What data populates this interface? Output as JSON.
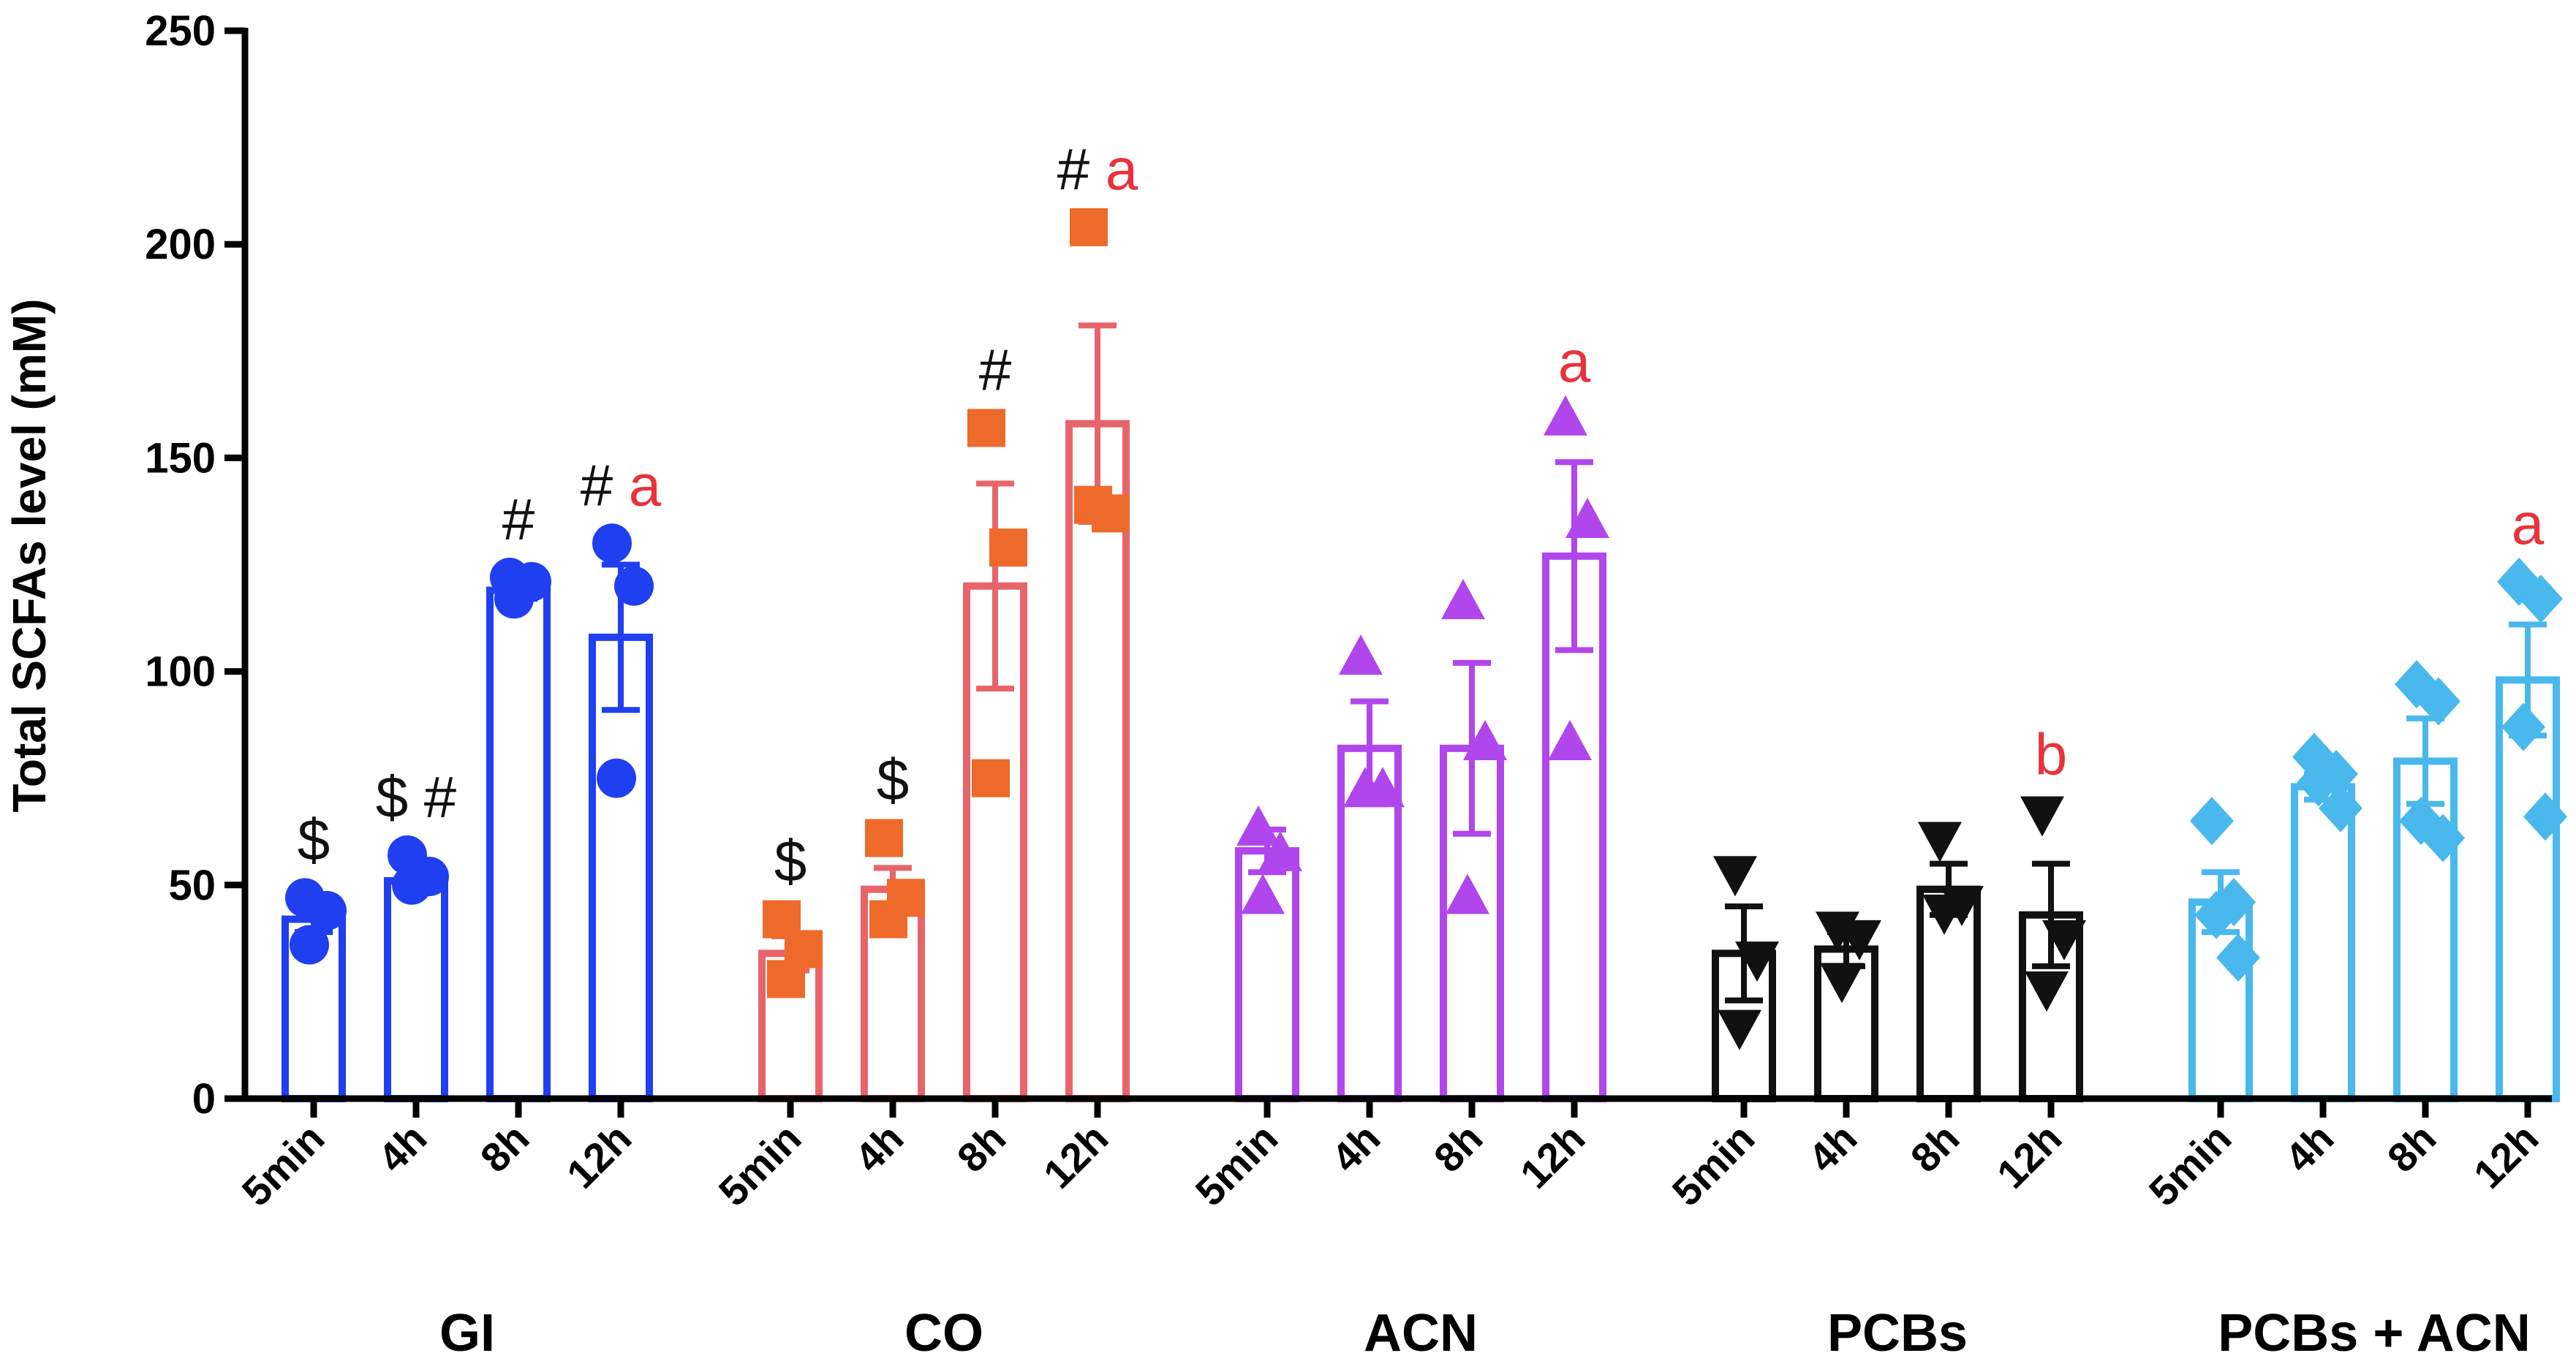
{
  "chart_data": {
    "type": "bar",
    "title": "",
    "xlabel": "",
    "ylabel": "Total SCFAs level (mM)",
    "ylim": [
      0,
      250
    ],
    "yticks": [
      0,
      50,
      100,
      150,
      200,
      250
    ],
    "grid": false,
    "legend": "none",
    "annotation_colors": {
      "black": "#111111",
      "red": "#e8323c"
    },
    "groups": [
      {
        "name": "GI",
        "color": "#1f3ff0",
        "marker": "circle",
        "bars": [
          {
            "label": "5min",
            "mean": 42,
            "err": 3,
            "points": [
              47,
              44,
              36
            ],
            "annotations": [
              {
                "text": "$",
                "color": "black"
              }
            ]
          },
          {
            "label": "4h",
            "mean": 51,
            "err": 2,
            "points": [
              57,
              52,
              50
            ],
            "annotations": [
              {
                "text": "$",
                "color": "black"
              },
              {
                "text": "#",
                "color": "black"
              }
            ]
          },
          {
            "label": "8h",
            "mean": 119,
            "err": 2,
            "points": [
              122,
              121,
              117
            ],
            "annotations": [
              {
                "text": "#",
                "color": "black"
              }
            ]
          },
          {
            "label": "12h",
            "mean": 108,
            "err": 17,
            "points": [
              130,
              120,
              75
            ],
            "annotations": [
              {
                "text": "#",
                "color": "black"
              },
              {
                "text": "a",
                "color": "red"
              }
            ]
          }
        ]
      },
      {
        "name": "CO",
        "color": "#e8646b",
        "marker": "square",
        "marker_color": "#ee6a2a",
        "bars": [
          {
            "label": "5min",
            "mean": 34,
            "err": 4,
            "points": [
              42,
              35,
              28
            ],
            "annotations": [
              {
                "text": "$",
                "color": "black"
              }
            ]
          },
          {
            "label": "4h",
            "mean": 49,
            "err": 5,
            "points": [
              61,
              47,
              42
            ],
            "annotations": [
              {
                "text": "$",
                "color": "black"
              }
            ]
          },
          {
            "label": "8h",
            "mean": 120,
            "err": 24,
            "points": [
              157,
              129,
              75
            ],
            "annotations": [
              {
                "text": "#",
                "color": "black"
              }
            ]
          },
          {
            "label": "12h",
            "mean": 158,
            "err": 23,
            "points": [
              204,
              137,
              139
            ],
            "annotations": [
              {
                "text": "#",
                "color": "black"
              },
              {
                "text": "a",
                "color": "red"
              }
            ]
          }
        ]
      },
      {
        "name": "ACN",
        "color": "#b146ec",
        "marker": "triangle",
        "bars": [
          {
            "label": "5min",
            "mean": 58,
            "err": 5,
            "points": [
              63,
              57,
              47
            ],
            "annotations": []
          },
          {
            "label": "4h",
            "mean": 82,
            "err": 11,
            "points": [
              103,
              72,
              72
            ],
            "annotations": []
          },
          {
            "label": "8h",
            "mean": 82,
            "err": 20,
            "points": [
              116,
              83,
              47
            ],
            "annotations": []
          },
          {
            "label": "12h",
            "mean": 127,
            "err": 22,
            "points": [
              159,
              135,
              83
            ],
            "annotations": [
              {
                "text": "a",
                "color": "red"
              }
            ]
          }
        ]
      },
      {
        "name": "PCBs",
        "color": "#111111",
        "marker": "triangle-down",
        "bars": [
          {
            "label": "5min",
            "mean": 34,
            "err": 11,
            "points": [
              53,
              33,
              17
            ],
            "annotations": []
          },
          {
            "label": "4h",
            "mean": 35,
            "err": 4,
            "points": [
              40,
              38,
              28
            ],
            "annotations": []
          },
          {
            "label": "8h",
            "mean": 49,
            "err": 6,
            "points": [
              61,
              46,
              44
            ],
            "annotations": []
          },
          {
            "label": "12h",
            "mean": 43,
            "err": 12,
            "points": [
              67,
              38,
              26
            ],
            "annotations": [
              {
                "text": "b",
                "color": "red"
              }
            ]
          }
        ]
      },
      {
        "name": "PCBs + ACN",
        "color": "#49b8ec",
        "marker": "diamond",
        "bars": [
          {
            "label": "5min",
            "mean": 46,
            "err": 7,
            "points": [
              65,
              46,
              43,
              33
            ],
            "annotations": []
          },
          {
            "label": "4h",
            "mean": 73,
            "err": 3,
            "points": [
              80,
              76,
              74,
              68
            ],
            "annotations": []
          },
          {
            "label": "8h",
            "mean": 79,
            "err": 10,
            "points": [
              97,
              93,
              65,
              61
            ],
            "annotations": []
          },
          {
            "label": "12h",
            "mean": 98,
            "err": 13,
            "points": [
              121,
              117,
              87,
              66
            ],
            "annotations": [
              {
                "text": "a",
                "color": "red"
              }
            ]
          }
        ]
      }
    ]
  }
}
